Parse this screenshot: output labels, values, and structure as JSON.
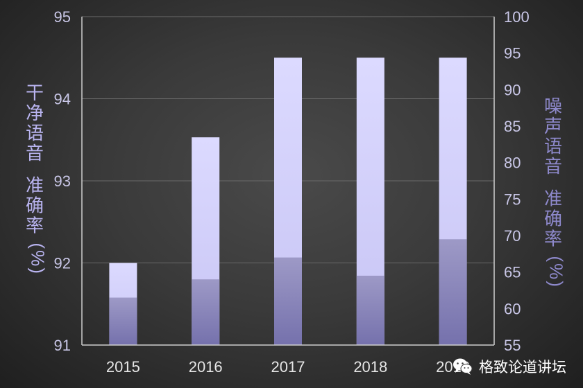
{
  "chart_data": {
    "type": "bar",
    "categories": [
      "2015",
      "2016",
      "2017",
      "2018",
      "2019"
    ],
    "series": [
      {
        "values": [
          92.0,
          93.53,
          94.5,
          94.5,
          94.5
        ],
        "color": "#d8d6ff",
        "axis": "left"
      },
      {
        "values": [
          61.5,
          64.0,
          67.0,
          64.5,
          69.5
        ],
        "color": "#7c78b0",
        "axis": "right"
      }
    ],
    "ylabel_left": "干净语音 准确率(%)",
    "ylabel_right": "噪声语音 准确率(%)",
    "ylim_left": [
      91,
      95
    ],
    "yticks_left": [
      "91",
      "92",
      "93",
      "94",
      "95"
    ],
    "ylim_right": [
      55,
      100
    ],
    "yticks_right": [
      "55",
      "60",
      "65",
      "70",
      "75",
      "80",
      "85",
      "90",
      "95",
      "100"
    ],
    "grid": true
  },
  "watermark": {
    "text": "格致论道讲坛",
    "icon": "wechat-icon"
  },
  "colors": {
    "background": "#3a3a3a",
    "clean_bar": "#d8d6ff",
    "noise_bar": "#7c78b0"
  }
}
